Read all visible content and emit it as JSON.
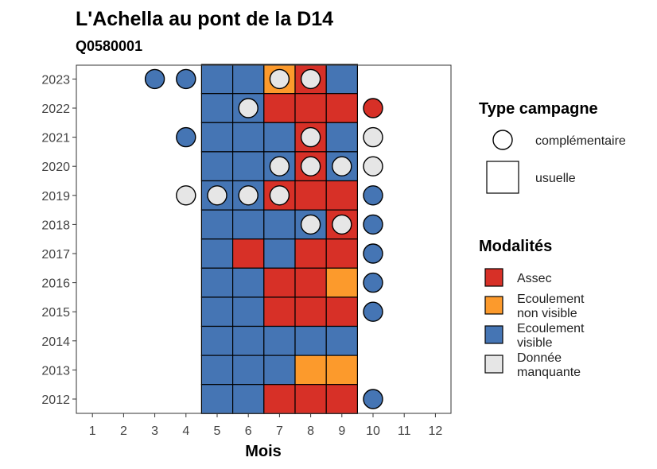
{
  "chart_data": {
    "type": "heatmap",
    "title": "L'Achella au pont de la D14",
    "subtitle": "Q0580001",
    "xlabel": "Mois",
    "ylabel": "",
    "x_ticks": [
      1,
      2,
      3,
      4,
      5,
      6,
      7,
      8,
      9,
      10,
      11,
      12
    ],
    "y_ticks": [
      2012,
      2013,
      2014,
      2015,
      2016,
      2017,
      2018,
      2019,
      2020,
      2021,
      2022,
      2023
    ],
    "colors": {
      "Assec": "#d73027",
      "Ecoulement non visible": "#fc9a2c",
      "Ecoulement visible": "#4575b4",
      "Donnée manquante": "#e6e6e6"
    },
    "usuelle": [
      {
        "year": 2023,
        "months": [
          5,
          6,
          7,
          8,
          9
        ],
        "values": [
          "Ecoulement visible",
          "Ecoulement visible",
          "Ecoulement non visible",
          "Assec",
          "Ecoulement visible"
        ]
      },
      {
        "year": 2022,
        "months": [
          5,
          6,
          7,
          8,
          9
        ],
        "values": [
          "Ecoulement visible",
          "Ecoulement visible",
          "Assec",
          "Assec",
          "Assec"
        ]
      },
      {
        "year": 2021,
        "months": [
          5,
          6,
          7,
          8,
          9
        ],
        "values": [
          "Ecoulement visible",
          "Ecoulement visible",
          "Ecoulement visible",
          "Assec",
          "Ecoulement visible"
        ]
      },
      {
        "year": 2020,
        "months": [
          5,
          6,
          7,
          8,
          9
        ],
        "values": [
          "Ecoulement visible",
          "Ecoulement visible",
          "Ecoulement visible",
          "Assec",
          "Ecoulement visible"
        ]
      },
      {
        "year": 2019,
        "months": [
          5,
          6,
          7,
          8,
          9
        ],
        "values": [
          "Ecoulement visible",
          "Ecoulement visible",
          "Assec",
          "Assec",
          "Assec"
        ]
      },
      {
        "year": 2018,
        "months": [
          5,
          6,
          7,
          8,
          9
        ],
        "values": [
          "Ecoulement visible",
          "Ecoulement visible",
          "Ecoulement visible",
          "Ecoulement visible",
          "Assec"
        ]
      },
      {
        "year": 2017,
        "months": [
          5,
          6,
          7,
          8,
          9
        ],
        "values": [
          "Ecoulement visible",
          "Assec",
          "Ecoulement visible",
          "Assec",
          "Assec"
        ]
      },
      {
        "year": 2016,
        "months": [
          5,
          6,
          7,
          8,
          9
        ],
        "values": [
          "Ecoulement visible",
          "Ecoulement visible",
          "Assec",
          "Assec",
          "Ecoulement non visible"
        ]
      },
      {
        "year": 2015,
        "months": [
          5,
          6,
          7,
          8,
          9
        ],
        "values": [
          "Ecoulement visible",
          "Ecoulement visible",
          "Assec",
          "Assec",
          "Assec"
        ]
      },
      {
        "year": 2014,
        "months": [
          5,
          6,
          7,
          8,
          9
        ],
        "values": [
          "Ecoulement visible",
          "Ecoulement visible",
          "Ecoulement visible",
          "Ecoulement visible",
          "Ecoulement visible"
        ]
      },
      {
        "year": 2013,
        "months": [
          5,
          6,
          7,
          8,
          9
        ],
        "values": [
          "Ecoulement visible",
          "Ecoulement visible",
          "Ecoulement visible",
          "Ecoulement non visible",
          "Ecoulement non visible"
        ]
      },
      {
        "year": 2012,
        "months": [
          5,
          6,
          7,
          8,
          9
        ],
        "values": [
          "Ecoulement visible",
          "Ecoulement visible",
          "Assec",
          "Assec",
          "Assec"
        ]
      }
    ],
    "complementaire": [
      {
        "year": 2023,
        "month": 3,
        "value": "Ecoulement visible"
      },
      {
        "year": 2023,
        "month": 4,
        "value": "Ecoulement visible"
      },
      {
        "year": 2023,
        "month": 7,
        "value": "Donnée manquante"
      },
      {
        "year": 2023,
        "month": 8,
        "value": "Donnée manquante"
      },
      {
        "year": 2022,
        "month": 6,
        "value": "Donnée manquante"
      },
      {
        "year": 2022,
        "month": 10,
        "value": "Assec"
      },
      {
        "year": 2021,
        "month": 4,
        "value": "Ecoulement visible"
      },
      {
        "year": 2021,
        "month": 8,
        "value": "Donnée manquante"
      },
      {
        "year": 2021,
        "month": 10,
        "value": "Donnée manquante"
      },
      {
        "year": 2020,
        "month": 7,
        "value": "Donnée manquante"
      },
      {
        "year": 2020,
        "month": 8,
        "value": "Donnée manquante"
      },
      {
        "year": 2020,
        "month": 9,
        "value": "Donnée manquante"
      },
      {
        "year": 2020,
        "month": 10,
        "value": "Donnée manquante"
      },
      {
        "year": 2019,
        "month": 4,
        "value": "Donnée manquante"
      },
      {
        "year": 2019,
        "month": 5,
        "value": "Donnée manquante"
      },
      {
        "year": 2019,
        "month": 6,
        "value": "Donnée manquante"
      },
      {
        "year": 2019,
        "month": 7,
        "value": "Donnée manquante"
      },
      {
        "year": 2019,
        "month": 10,
        "value": "Ecoulement visible"
      },
      {
        "year": 2018,
        "month": 8,
        "value": "Donnée manquante"
      },
      {
        "year": 2018,
        "month": 9,
        "value": "Donnée manquante"
      },
      {
        "year": 2018,
        "month": 10,
        "value": "Ecoulement visible"
      },
      {
        "year": 2017,
        "month": 10,
        "value": "Ecoulement visible"
      },
      {
        "year": 2016,
        "month": 10,
        "value": "Ecoulement visible"
      },
      {
        "year": 2015,
        "month": 10,
        "value": "Ecoulement visible"
      },
      {
        "year": 2012,
        "month": 10,
        "value": "Ecoulement visible"
      }
    ],
    "legend": {
      "type_title": "Type campagne",
      "type_entries": [
        "complémentaire",
        "usuelle"
      ],
      "modalites_title": "Modalités",
      "modalites_entries": [
        {
          "key": "Assec",
          "lines": [
            "Assec"
          ]
        },
        {
          "key": "Ecoulement non visible",
          "lines": [
            "Ecoulement",
            "non visible"
          ]
        },
        {
          "key": "Ecoulement visible",
          "lines": [
            "Ecoulement",
            "visible"
          ]
        },
        {
          "key": "Donnée manquante",
          "lines": [
            "Donnée",
            "manquante"
          ]
        }
      ],
      "placement": "right"
    }
  }
}
